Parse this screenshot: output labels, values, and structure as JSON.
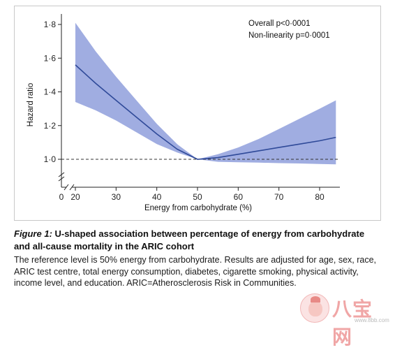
{
  "chart_data": {
    "type": "line",
    "x": [
      20,
      25,
      30,
      35,
      40,
      45,
      50,
      55,
      60,
      65,
      70,
      75,
      80,
      84
    ],
    "series": [
      {
        "values": [
          1.56,
          1.45,
          1.35,
          1.25,
          1.15,
          1.06,
          1.0,
          1.01,
          1.03,
          1.05,
          1.07,
          1.09,
          1.11,
          1.13
        ]
      }
    ],
    "ci_upper": [
      1.81,
      1.64,
      1.49,
      1.35,
      1.21,
      1.09,
      1.0,
      1.03,
      1.07,
      1.12,
      1.18,
      1.24,
      1.3,
      1.35
    ],
    "ci_lower": [
      1.34,
      1.29,
      1.23,
      1.16,
      1.09,
      1.04,
      1.0,
      0.985,
      0.982,
      0.98,
      0.977,
      0.975,
      0.972,
      0.97
    ],
    "reference_line": 1.0,
    "xlabel": "Energy from carbohydrate (%)",
    "ylabel": "Hazard ratio",
    "x_ticks": [
      "0",
      "20",
      "30",
      "40",
      "50",
      "60",
      "70",
      "80"
    ],
    "x_tick_values": [
      0,
      20,
      30,
      40,
      50,
      60,
      70,
      80
    ],
    "y_ticks": [
      "1·0",
      "1·2",
      "1·4",
      "1·6",
      "1·8"
    ],
    "y_tick_values": [
      1.0,
      1.2,
      1.4,
      1.6,
      1.8
    ],
    "xlim": [
      0,
      84
    ],
    "ylim": [
      0.8,
      1.85
    ],
    "axis_break": true,
    "grid": false,
    "annotations": [
      "Overall p<0·0001",
      "Non-linearity p=0·0001"
    ],
    "colors": {
      "band": "#8f9fdc",
      "line": "#2f4a99",
      "reference": "#333333"
    }
  },
  "caption": {
    "figure_label": "Figure 1:",
    "title": " U-shaped association between percentage of energy from carbohydrate and all-cause mortality in the ARIC cohort",
    "body": "The reference level is 50% energy from carbohydrate. Results are adjusted for age, sex, race, ARIC test centre, total energy consumption, diabetes, cigarette smoking, physical activity, income level, and education. ARIC=Atherosclerosis Risk in Communities."
  },
  "watermark": {
    "text": "八宝网",
    "url": "www.8bb.com"
  }
}
